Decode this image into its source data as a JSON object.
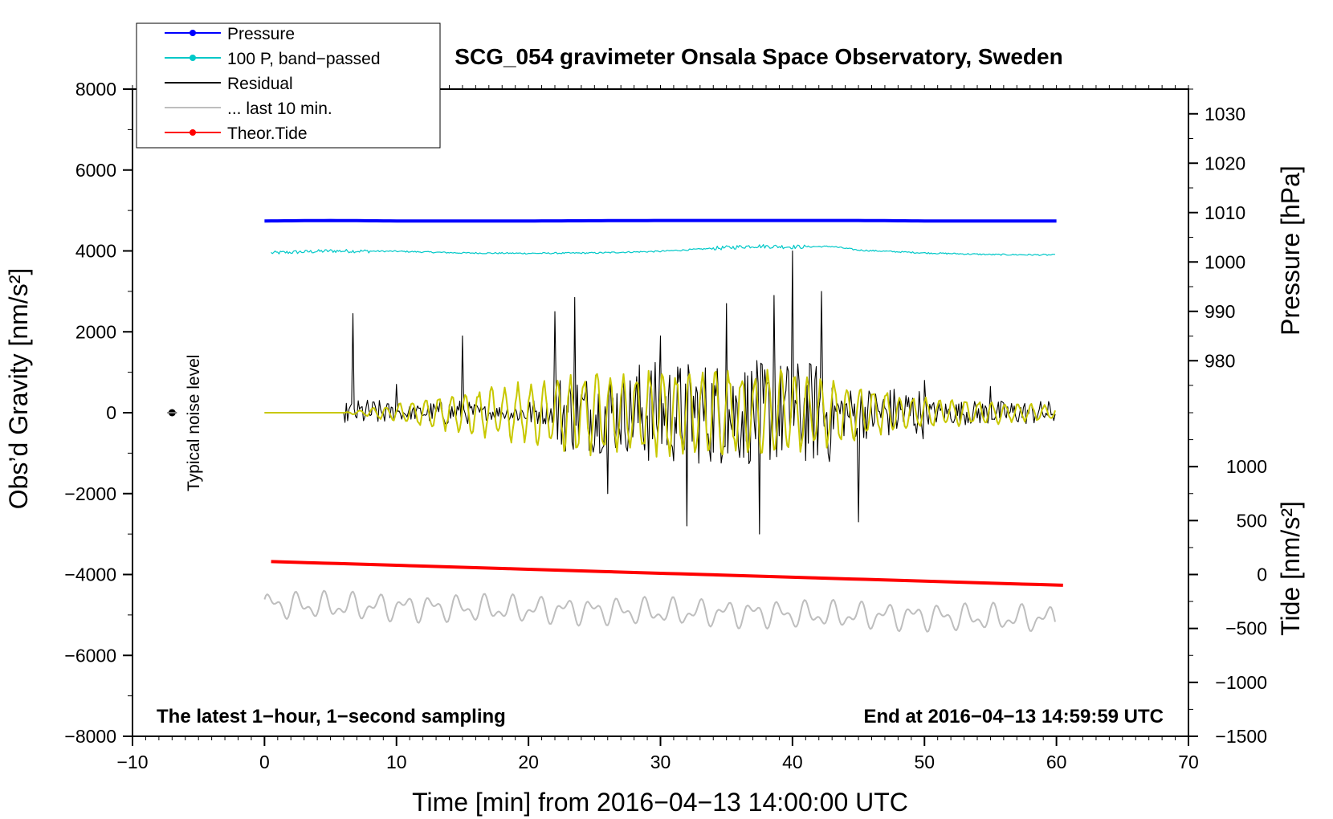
{
  "chart_data": {
    "type": "line",
    "title": "SCG_054 gravimeter Onsala Space Observatory, Sweden",
    "xlabel": "Time [min] from 2016−04−13 14:00:00 UTC",
    "ylabel_left": "Obs’d Gravity [nm/s²]",
    "ylabel_right_top": "Pressure [hPa]",
    "ylabel_right_bottom": "Tide [nm/s²]",
    "xlim": [
      -10,
      70
    ],
    "ylim_left": [
      -8000,
      8000
    ],
    "pressure_axis": [
      975,
      1035
    ],
    "tide_axis": [
      -1500,
      1500
    ],
    "x_ticks": [
      "−10",
      "0",
      "10",
      "20",
      "30",
      "40",
      "50",
      "60",
      "70"
    ],
    "x_tick_values": [
      -10,
      0,
      10,
      20,
      30,
      40,
      50,
      60,
      70
    ],
    "y_left_ticks": [
      "8000",
      "6000",
      "4000",
      "2000",
      "0",
      "−2000",
      "−4000",
      "−6000",
      "−8000"
    ],
    "y_left_tick_values": [
      8000,
      6000,
      4000,
      2000,
      0,
      -2000,
      -4000,
      -6000,
      -8000
    ],
    "pressure_ticks": [
      "1030",
      "1020",
      "1010",
      "1000",
      "990",
      "980"
    ],
    "pressure_tick_values": [
      1030,
      1020,
      1010,
      1000,
      990,
      980
    ],
    "tide_ticks": [
      "1000",
      "500",
      "0",
      "−500",
      "−1000",
      "−1500"
    ],
    "tide_tick_values": [
      1000,
      500,
      0,
      -500,
      -1000,
      -1500
    ],
    "legend": [
      {
        "label": "Pressure",
        "color": "#0000ff",
        "marker": true
      },
      {
        "label": "100 P, band−passed",
        "color": "#00c8c8",
        "marker": true
      },
      {
        "label": "Residual",
        "color": "#000000",
        "marker": false
      },
      {
        "label": "... last 10 min.",
        "color": "#bebebe",
        "marker": false
      },
      {
        "label": "Theor.Tide",
        "color": "#ff0000",
        "marker": true
      }
    ],
    "annotations": {
      "noise_label": "Typical noise level",
      "noise_point": {
        "x": -7,
        "y": 0
      },
      "bottom_left": "The latest 1−hour, 1−second sampling",
      "bottom_right": "End at 2016−04−13 14:59:59 UTC"
    },
    "series": [
      {
        "name": "Pressure",
        "color": "#0000ff",
        "unit": "hPa",
        "x": [
          0,
          5,
          10,
          20,
          30,
          40,
          45,
          50,
          60
        ],
        "values": [
          1008.3,
          1008.4,
          1008.3,
          1008.3,
          1008.4,
          1008.4,
          1008.4,
          1008.3,
          1008.3
        ]
      },
      {
        "name": "100 P, band-passed",
        "color": "#00c8c8",
        "unit": "nm/s²",
        "x": [
          0.5,
          5,
          10,
          15,
          20,
          25,
          30,
          35,
          37,
          40,
          43,
          45,
          50,
          55,
          60
        ],
        "values": [
          3950,
          4000,
          3990,
          3950,
          3940,
          3950,
          3990,
          4080,
          4120,
          4100,
          4110,
          4020,
          3950,
          3910,
          3900
        ]
      },
      {
        "name": "Residual",
        "color": "#000000",
        "unit": "nm/s²",
        "x": [
          0,
          6,
          6.7,
          10,
          15,
          22,
          23.5,
          26,
          30,
          32,
          35,
          37.5,
          38.6,
          40,
          42.2,
          45,
          50,
          55,
          60
        ],
        "values": [
          0,
          0,
          2450,
          700,
          1900,
          2500,
          2850,
          -2000,
          1900,
          -2800,
          2700,
          -3000,
          2900,
          4000,
          3000,
          -2700,
          800,
          650,
          -300
        ]
      },
      {
        "name": "... last 10 min.",
        "color": "#bebebe",
        "unit": "nm/s²",
        "x": [
          0,
          60
        ],
        "values": [
          -4750,
          -5100
        ]
      },
      {
        "name": "Theor.Tide",
        "color": "#ff0000",
        "unit": "nm/s²",
        "x": [
          0.5,
          60.5
        ],
        "values": [
          120,
          -100
        ]
      },
      {
        "name": "Residual band-passed",
        "color": "#c8c800",
        "unit": "nm/s²",
        "x": [
          0,
          6,
          22,
          30,
          40,
          50,
          60
        ],
        "values": [
          0,
          0,
          1000,
          1200,
          1100,
          400,
          200
        ]
      }
    ]
  }
}
